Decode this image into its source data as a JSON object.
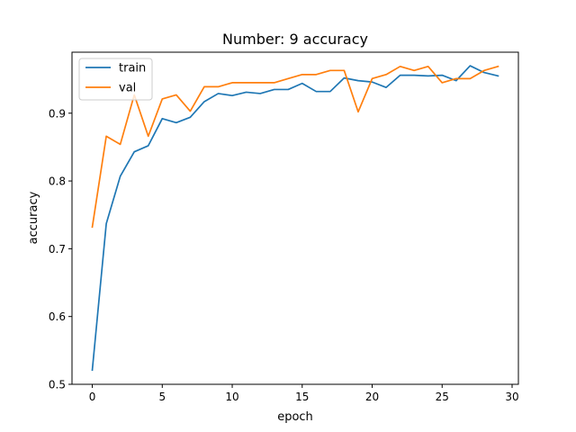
{
  "chart_data": {
    "type": "line",
    "title": "Number: 9 accuracy",
    "xlabel": "epoch",
    "ylabel": "accuracy",
    "xlim": [
      -1.45,
      30.45
    ],
    "ylim": [
      0.5,
      0.99
    ],
    "xticks": [
      0,
      5,
      10,
      15,
      20,
      25,
      30
    ],
    "yticks": [
      0.5,
      0.6,
      0.7,
      0.8,
      0.9
    ],
    "grid": false,
    "legend_position": "top-left",
    "series": [
      {
        "name": "train",
        "color": "#1f77b4",
        "x": [
          0,
          1,
          2,
          3,
          4,
          5,
          6,
          7,
          8,
          9,
          10,
          11,
          12,
          13,
          14,
          15,
          16,
          17,
          18,
          19,
          20,
          21,
          22,
          23,
          24,
          25,
          26,
          27,
          28,
          29
        ],
        "values": [
          0.521,
          0.737,
          0.807,
          0.843,
          0.852,
          0.892,
          0.886,
          0.894,
          0.917,
          0.929,
          0.926,
          0.931,
          0.929,
          0.935,
          0.935,
          0.944,
          0.932,
          0.932,
          0.952,
          0.948,
          0.946,
          0.938,
          0.956,
          0.956,
          0.955,
          0.956,
          0.948,
          0.97,
          0.96,
          0.955
        ]
      },
      {
        "name": "val",
        "color": "#ff7f0e",
        "x": [
          0,
          1,
          2,
          3,
          4,
          5,
          6,
          7,
          8,
          9,
          10,
          11,
          12,
          13,
          14,
          15,
          16,
          17,
          18,
          19,
          20,
          21,
          22,
          23,
          24,
          25,
          26,
          27,
          28,
          29
        ],
        "values": [
          0.732,
          0.866,
          0.854,
          0.927,
          0.866,
          0.921,
          0.927,
          0.903,
          0.939,
          0.939,
          0.945,
          0.945,
          0.945,
          0.945,
          0.951,
          0.957,
          0.957,
          0.963,
          0.963,
          0.902,
          0.951,
          0.957,
          0.969,
          0.963,
          0.969,
          0.945,
          0.951,
          0.951,
          0.963,
          0.969
        ]
      }
    ]
  }
}
